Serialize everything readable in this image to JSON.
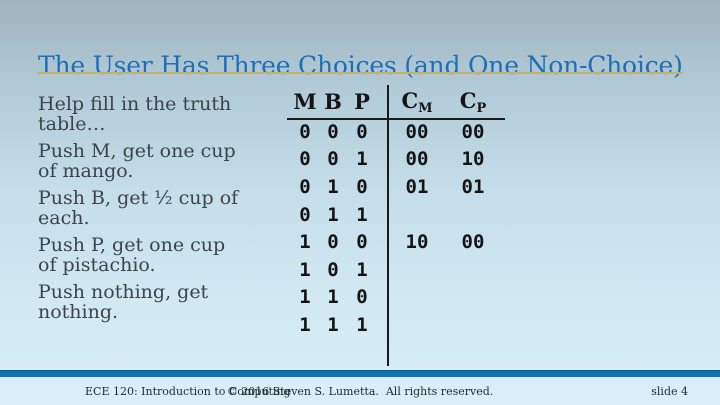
{
  "slide": {
    "title": "The User Has Three Choices (and One Non-Choice)",
    "bullets": [
      [
        "Help fill in the truth",
        "table…"
      ],
      [
        "Push M, get one cup",
        "of mango."
      ],
      [
        "Push B, get ½ cup of",
        "each."
      ],
      [
        "Push P, get one cup",
        "of pistachio."
      ],
      [
        "Push nothing, get",
        "nothing."
      ]
    ],
    "table": {
      "headers": {
        "m": "M",
        "b": "B",
        "p": "P",
        "cm_base": "C",
        "cm_sub": "M",
        "cp_base": "C",
        "cp_sub": "P"
      },
      "rows": [
        {
          "m": "0",
          "b": "0",
          "p": "0",
          "cm": "00",
          "cp": "00"
        },
        {
          "m": "0",
          "b": "0",
          "p": "1",
          "cm": "00",
          "cp": "10"
        },
        {
          "m": "0",
          "b": "1",
          "p": "0",
          "cm": "01",
          "cp": "01"
        },
        {
          "m": "0",
          "b": "1",
          "p": "1",
          "cm": "",
          "cp": ""
        },
        {
          "m": "1",
          "b": "0",
          "p": "0",
          "cm": "10",
          "cp": "00"
        },
        {
          "m": "1",
          "b": "0",
          "p": "1",
          "cm": "",
          "cp": ""
        },
        {
          "m": "1",
          "b": "1",
          "p": "0",
          "cm": "",
          "cp": ""
        },
        {
          "m": "1",
          "b": "1",
          "p": "1",
          "cm": "",
          "cp": ""
        }
      ]
    },
    "footer": {
      "course": "ECE 120: Introduction to Computing",
      "copyright": "© 2016 Steven S. Lumetta.  All rights reserved.",
      "slide_number": "slide 4"
    },
    "colors": {
      "title_blue": "#1e6fb8",
      "gold_rule": "#c5b269",
      "footer_bar_blue": "#0d74b0",
      "body_text": "#3c444b"
    }
  }
}
